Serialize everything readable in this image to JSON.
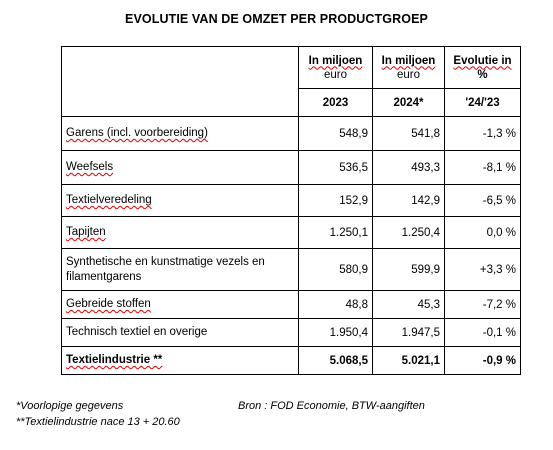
{
  "title": "EVOLUTIE VAN DE OMZET PER PRODUCTGROEP",
  "headers": {
    "col1_line1": "In miljoen",
    "col1_line2": "euro",
    "col2_line1": "In miljoen",
    "col2_line2": "euro",
    "col3_line1": "Evolutie in",
    "col3_line2": "%",
    "year1": "2023",
    "year2": "2024*",
    "evol": "'24/'23"
  },
  "rows": [
    {
      "label": "Garens (incl. voorbereiding)",
      "v2023": "548,9",
      "v2024": "541,8",
      "evol": "-1,3 %"
    },
    {
      "label": "Weefsels",
      "v2023": "536,5",
      "v2024": "493,3",
      "evol": "-8,1 %"
    },
    {
      "label": "Textielveredeling",
      "v2023": "152,9",
      "v2024": "142,9",
      "evol": "-6,5 %"
    },
    {
      "label": "Tapijten",
      "v2023": "1.250,1",
      "v2024": "1.250,4",
      "evol": "0,0 %"
    },
    {
      "label": "Synthetische en kunstmatige vezels en filamentgarens",
      "v2023": "580,9",
      "v2024": "599,9",
      "evol": "+3,3 %"
    },
    {
      "label": "Gebreide stoffen",
      "v2023": "48,8",
      "v2024": "45,3",
      "evol": "-7,2 %"
    },
    {
      "label": "Technisch textiel en overige",
      "v2023": "1.950,4",
      "v2024": "1.947,5",
      "evol": "-0,1 %"
    },
    {
      "label": "Textielindustrie **",
      "v2023": "5.068,5",
      "v2024": "5.021,1",
      "evol": "-0,9 %"
    }
  ],
  "footnotes": {
    "provisional": "*Voorlopige gegevens",
    "source": "Bron : FOD Economie, BTW-aangiften",
    "industry": "**Textielindustrie nace 13 + 20.60"
  }
}
